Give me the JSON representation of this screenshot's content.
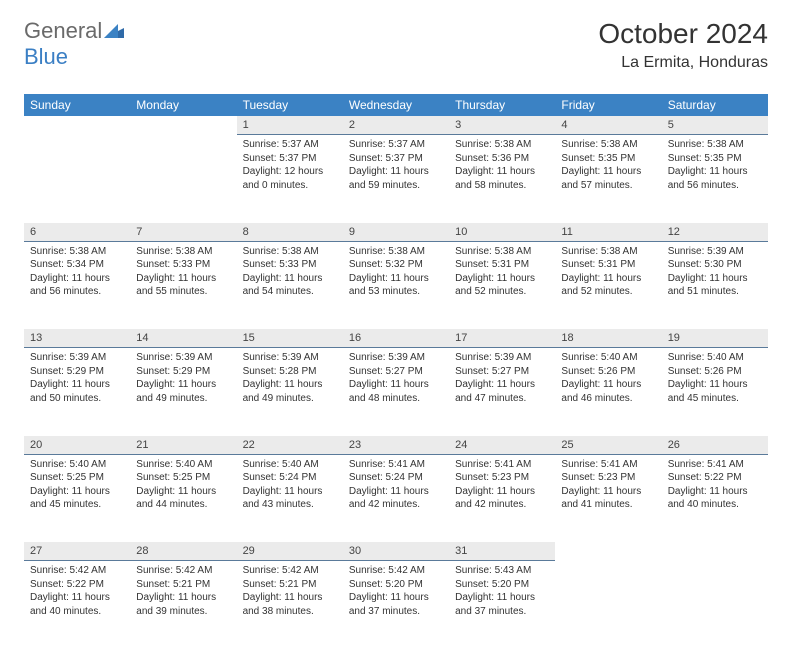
{
  "logo": {
    "part1": "General",
    "part2": "Blue"
  },
  "title": "October 2024",
  "location": "La Ermita, Honduras",
  "colors": {
    "header_bg": "#3b82c4",
    "daynum_bg": "#ebebeb",
    "daynum_border": "#5a7a9a"
  },
  "weekdays": [
    "Sunday",
    "Monday",
    "Tuesday",
    "Wednesday",
    "Thursday",
    "Friday",
    "Saturday"
  ],
  "weeks": [
    {
      "days": [
        {
          "num": "",
          "sunrise": "",
          "sunset": "",
          "daylight": ""
        },
        {
          "num": "",
          "sunrise": "",
          "sunset": "",
          "daylight": ""
        },
        {
          "num": "1",
          "sunrise": "Sunrise: 5:37 AM",
          "sunset": "Sunset: 5:37 PM",
          "daylight": "Daylight: 12 hours and 0 minutes."
        },
        {
          "num": "2",
          "sunrise": "Sunrise: 5:37 AM",
          "sunset": "Sunset: 5:37 PM",
          "daylight": "Daylight: 11 hours and 59 minutes."
        },
        {
          "num": "3",
          "sunrise": "Sunrise: 5:38 AM",
          "sunset": "Sunset: 5:36 PM",
          "daylight": "Daylight: 11 hours and 58 minutes."
        },
        {
          "num": "4",
          "sunrise": "Sunrise: 5:38 AM",
          "sunset": "Sunset: 5:35 PM",
          "daylight": "Daylight: 11 hours and 57 minutes."
        },
        {
          "num": "5",
          "sunrise": "Sunrise: 5:38 AM",
          "sunset": "Sunset: 5:35 PM",
          "daylight": "Daylight: 11 hours and 56 minutes."
        }
      ]
    },
    {
      "days": [
        {
          "num": "6",
          "sunrise": "Sunrise: 5:38 AM",
          "sunset": "Sunset: 5:34 PM",
          "daylight": "Daylight: 11 hours and 56 minutes."
        },
        {
          "num": "7",
          "sunrise": "Sunrise: 5:38 AM",
          "sunset": "Sunset: 5:33 PM",
          "daylight": "Daylight: 11 hours and 55 minutes."
        },
        {
          "num": "8",
          "sunrise": "Sunrise: 5:38 AM",
          "sunset": "Sunset: 5:33 PM",
          "daylight": "Daylight: 11 hours and 54 minutes."
        },
        {
          "num": "9",
          "sunrise": "Sunrise: 5:38 AM",
          "sunset": "Sunset: 5:32 PM",
          "daylight": "Daylight: 11 hours and 53 minutes."
        },
        {
          "num": "10",
          "sunrise": "Sunrise: 5:38 AM",
          "sunset": "Sunset: 5:31 PM",
          "daylight": "Daylight: 11 hours and 52 minutes."
        },
        {
          "num": "11",
          "sunrise": "Sunrise: 5:38 AM",
          "sunset": "Sunset: 5:31 PM",
          "daylight": "Daylight: 11 hours and 52 minutes."
        },
        {
          "num": "12",
          "sunrise": "Sunrise: 5:39 AM",
          "sunset": "Sunset: 5:30 PM",
          "daylight": "Daylight: 11 hours and 51 minutes."
        }
      ]
    },
    {
      "days": [
        {
          "num": "13",
          "sunrise": "Sunrise: 5:39 AM",
          "sunset": "Sunset: 5:29 PM",
          "daylight": "Daylight: 11 hours and 50 minutes."
        },
        {
          "num": "14",
          "sunrise": "Sunrise: 5:39 AM",
          "sunset": "Sunset: 5:29 PM",
          "daylight": "Daylight: 11 hours and 49 minutes."
        },
        {
          "num": "15",
          "sunrise": "Sunrise: 5:39 AM",
          "sunset": "Sunset: 5:28 PM",
          "daylight": "Daylight: 11 hours and 49 minutes."
        },
        {
          "num": "16",
          "sunrise": "Sunrise: 5:39 AM",
          "sunset": "Sunset: 5:27 PM",
          "daylight": "Daylight: 11 hours and 48 minutes."
        },
        {
          "num": "17",
          "sunrise": "Sunrise: 5:39 AM",
          "sunset": "Sunset: 5:27 PM",
          "daylight": "Daylight: 11 hours and 47 minutes."
        },
        {
          "num": "18",
          "sunrise": "Sunrise: 5:40 AM",
          "sunset": "Sunset: 5:26 PM",
          "daylight": "Daylight: 11 hours and 46 minutes."
        },
        {
          "num": "19",
          "sunrise": "Sunrise: 5:40 AM",
          "sunset": "Sunset: 5:26 PM",
          "daylight": "Daylight: 11 hours and 45 minutes."
        }
      ]
    },
    {
      "days": [
        {
          "num": "20",
          "sunrise": "Sunrise: 5:40 AM",
          "sunset": "Sunset: 5:25 PM",
          "daylight": "Daylight: 11 hours and 45 minutes."
        },
        {
          "num": "21",
          "sunrise": "Sunrise: 5:40 AM",
          "sunset": "Sunset: 5:25 PM",
          "daylight": "Daylight: 11 hours and 44 minutes."
        },
        {
          "num": "22",
          "sunrise": "Sunrise: 5:40 AM",
          "sunset": "Sunset: 5:24 PM",
          "daylight": "Daylight: 11 hours and 43 minutes."
        },
        {
          "num": "23",
          "sunrise": "Sunrise: 5:41 AM",
          "sunset": "Sunset: 5:24 PM",
          "daylight": "Daylight: 11 hours and 42 minutes."
        },
        {
          "num": "24",
          "sunrise": "Sunrise: 5:41 AM",
          "sunset": "Sunset: 5:23 PM",
          "daylight": "Daylight: 11 hours and 42 minutes."
        },
        {
          "num": "25",
          "sunrise": "Sunrise: 5:41 AM",
          "sunset": "Sunset: 5:23 PM",
          "daylight": "Daylight: 11 hours and 41 minutes."
        },
        {
          "num": "26",
          "sunrise": "Sunrise: 5:41 AM",
          "sunset": "Sunset: 5:22 PM",
          "daylight": "Daylight: 11 hours and 40 minutes."
        }
      ]
    },
    {
      "days": [
        {
          "num": "27",
          "sunrise": "Sunrise: 5:42 AM",
          "sunset": "Sunset: 5:22 PM",
          "daylight": "Daylight: 11 hours and 40 minutes."
        },
        {
          "num": "28",
          "sunrise": "Sunrise: 5:42 AM",
          "sunset": "Sunset: 5:21 PM",
          "daylight": "Daylight: 11 hours and 39 minutes."
        },
        {
          "num": "29",
          "sunrise": "Sunrise: 5:42 AM",
          "sunset": "Sunset: 5:21 PM",
          "daylight": "Daylight: 11 hours and 38 minutes."
        },
        {
          "num": "30",
          "sunrise": "Sunrise: 5:42 AM",
          "sunset": "Sunset: 5:20 PM",
          "daylight": "Daylight: 11 hours and 37 minutes."
        },
        {
          "num": "31",
          "sunrise": "Sunrise: 5:43 AM",
          "sunset": "Sunset: 5:20 PM",
          "daylight": "Daylight: 11 hours and 37 minutes."
        },
        {
          "num": "",
          "sunrise": "",
          "sunset": "",
          "daylight": ""
        },
        {
          "num": "",
          "sunrise": "",
          "sunset": "",
          "daylight": ""
        }
      ]
    }
  ]
}
